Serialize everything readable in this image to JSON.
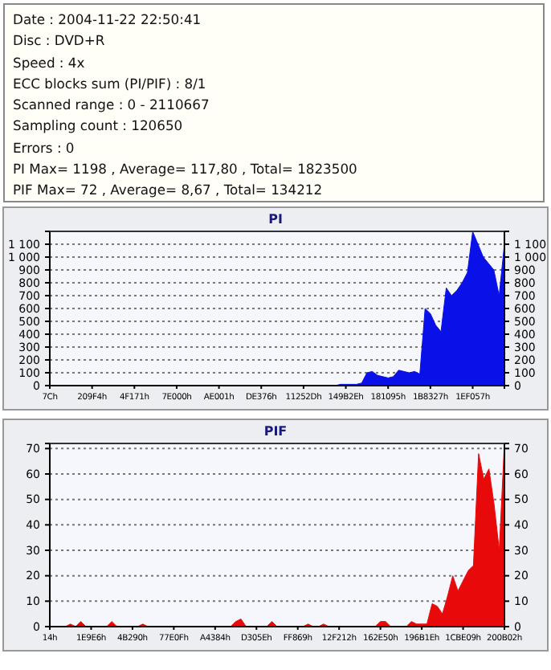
{
  "chart_data": [
    {
      "type": "other",
      "annotations": [
        "Date : 2004-11-22 22:50:41",
        "Disc : DVD+R",
        "Speed : 4x",
        "ECC blocks sum (PI/PIF) : 8/1",
        "Scanned range : 0 - 2110667",
        "Sampling count : 120650",
        "Errors : 0",
        "PI Max= 1198 , Average= 117,80 , Total= 1823500",
        "PIF Max= 72 , Average= 8,67 , Total= 134212"
      ]
    },
    {
      "type": "area",
      "title": "PI",
      "categories": [
        "7Ch",
        null,
        null,
        null,
        null,
        null,
        null,
        null,
        "209F4h",
        null,
        null,
        null,
        null,
        null,
        null,
        null,
        "4F171h",
        null,
        null,
        null,
        null,
        null,
        null,
        null,
        "7E000h",
        null,
        null,
        null,
        null,
        null,
        null,
        null,
        "AE001h",
        null,
        null,
        null,
        null,
        null,
        null,
        null,
        "DE376h",
        null,
        null,
        null,
        null,
        null,
        null,
        null,
        "11252Dh",
        null,
        null,
        null,
        null,
        null,
        null,
        null,
        "149B2Eh",
        null,
        null,
        null,
        null,
        null,
        null,
        null,
        "181095h",
        null,
        null,
        null,
        null,
        null,
        null,
        null,
        "1B8327h",
        null,
        null,
        null,
        null,
        null,
        null,
        null,
        "1EF057h",
        null,
        null,
        null,
        null,
        null,
        null
      ],
      "series": [
        {
          "color": "#0a10e8",
          "values": [
            0,
            0,
            0,
            0,
            0,
            0,
            0,
            0,
            0,
            0,
            0,
            0,
            0,
            0,
            0,
            0,
            0,
            0,
            0,
            0,
            0,
            0,
            0,
            0,
            0,
            0,
            0,
            0,
            0,
            0,
            0,
            0,
            0,
            0,
            0,
            0,
            0,
            0,
            0,
            0,
            0,
            0,
            0,
            0,
            0,
            0,
            0,
            0,
            0,
            0,
            0,
            0,
            0,
            0,
            0,
            10,
            10,
            10,
            10,
            20,
            100,
            110,
            80,
            70,
            60,
            70,
            120,
            110,
            100,
            110,
            90,
            600,
            560,
            470,
            420,
            760,
            700,
            740,
            800,
            880,
            1198,
            1100,
            1000,
            950,
            900,
            700,
            1100
          ]
        }
      ],
      "ylim": [
        0,
        1200
      ],
      "yticks": [
        0,
        100,
        200,
        300,
        400,
        500,
        600,
        700,
        800,
        900,
        {
          "value": 1000,
          "label": "1 000"
        },
        {
          "value": 1100,
          "label": "1 100"
        }
      ],
      "y2lim": [
        0,
        1200
      ],
      "y2ticks": [
        0,
        100,
        200,
        300,
        400,
        500,
        600,
        700,
        800,
        900,
        {
          "value": 1000,
          "label": "1 000"
        },
        {
          "value": 1100,
          "label": "1 100"
        }
      ],
      "grid": "y"
    },
    {
      "type": "area",
      "title": "PIF",
      "categories": [
        "14h",
        null,
        null,
        null,
        null,
        null,
        null,
        null,
        "1E9E6h",
        null,
        null,
        null,
        null,
        null,
        null,
        null,
        "4B290h",
        null,
        null,
        null,
        null,
        null,
        null,
        null,
        "77E0Fh",
        null,
        null,
        null,
        null,
        null,
        null,
        null,
        "A4384h",
        null,
        null,
        null,
        null,
        null,
        null,
        null,
        "D305Eh",
        null,
        null,
        null,
        null,
        null,
        null,
        null,
        "FF869h",
        null,
        null,
        null,
        null,
        null,
        null,
        null,
        "12F212h",
        null,
        null,
        null,
        null,
        null,
        null,
        null,
        "162E50h",
        null,
        null,
        null,
        null,
        null,
        null,
        null,
        "196B1Eh",
        null,
        null,
        null,
        null,
        null,
        null,
        null,
        "1CBE09h",
        null,
        null,
        null,
        null,
        null,
        null,
        null,
        "200B02h"
      ],
      "series": [
        {
          "color": "#e80a0a",
          "values": [
            0,
            0,
            0,
            0,
            1,
            0,
            2,
            0,
            0,
            0,
            0,
            0,
            2,
            0,
            0,
            0,
            0,
            0,
            1,
            0,
            0,
            0,
            0,
            0,
            0,
            0,
            0,
            0,
            0,
            0,
            0,
            0,
            0,
            0,
            0,
            0,
            2,
            3,
            0,
            0,
            0,
            0,
            0,
            2,
            0,
            0,
            0,
            0,
            0,
            0,
            1,
            0,
            0,
            1,
            0,
            0,
            0,
            0,
            0,
            0,
            0,
            0,
            0,
            0,
            2,
            2,
            0,
            0,
            0,
            0,
            2,
            1,
            1,
            1,
            9,
            8,
            5,
            12,
            20,
            14,
            18,
            22,
            24,
            68,
            58,
            62,
            48,
            30,
            72
          ]
        }
      ],
      "ylim": [
        0,
        72
      ],
      "yticks": [
        0,
        10,
        20,
        30,
        40,
        50,
        60,
        70
      ],
      "y2lim": [
        0,
        72
      ],
      "y2ticks": [
        0,
        10,
        20,
        30,
        40,
        50,
        60,
        70
      ],
      "grid": "y"
    }
  ]
}
